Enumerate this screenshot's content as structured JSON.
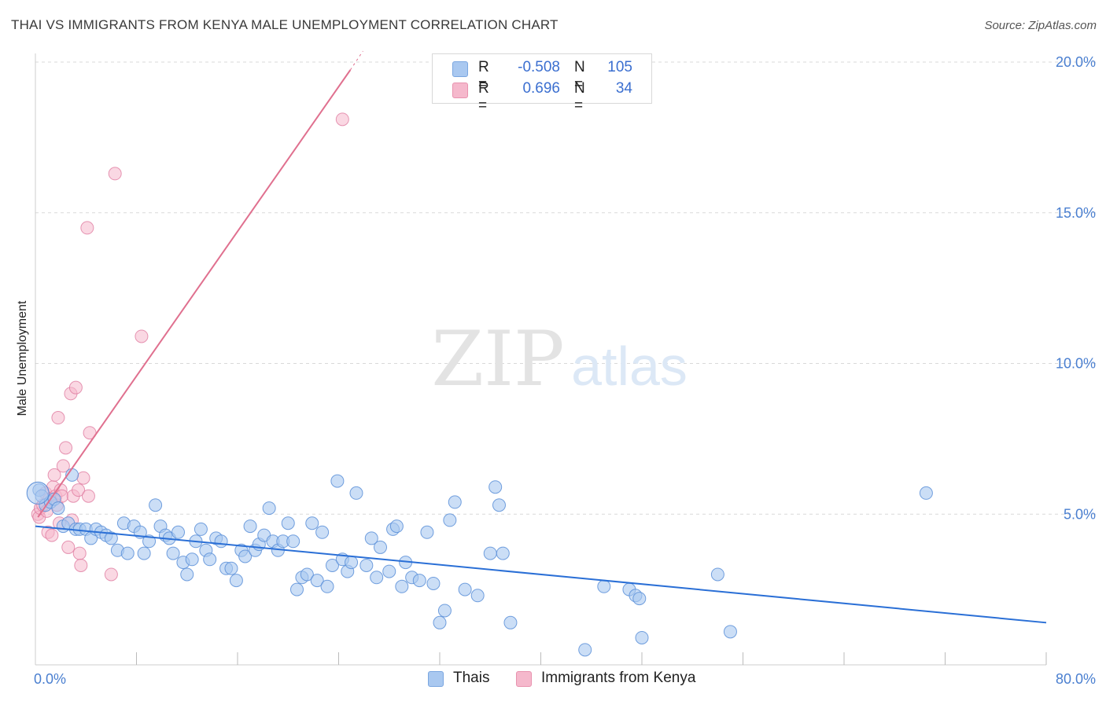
{
  "title": "THAI VS IMMIGRANTS FROM KENYA MALE UNEMPLOYMENT CORRELATION CHART",
  "source": "Source: ZipAtlas.com",
  "watermark": {
    "zip": "ZIP",
    "atlas": "atlas"
  },
  "legend": {
    "rows": [
      {
        "r_label": "R =",
        "r_value": "-0.508",
        "n_label": "N =",
        "n_value": "105",
        "color": "#a9c8f0"
      },
      {
        "r_label": "R =",
        "r_value": "0.696",
        "n_label": "N =",
        "n_value": "34",
        "color": "#f5b8cc"
      }
    ]
  },
  "bottom_legend": [
    {
      "label": "Thais",
      "color": "#a9c8f0"
    },
    {
      "label": "Immigrants from Kenya",
      "color": "#f5b8cc"
    }
  ],
  "colors": {
    "thais_fill": "#a9c8f0",
    "thais_stroke": "#5b8fd8",
    "thais_line": "#2a6fd6",
    "kenya_fill": "#f5b8cc",
    "kenya_stroke": "#e07ca0",
    "kenya_line": "#e0708f",
    "tick_text": "#4a7fd0",
    "grid": "#d9d9d9"
  },
  "chart_data": {
    "type": "scatter",
    "title": "THAI VS IMMIGRANTS FROM KENYA MALE UNEMPLOYMENT CORRELATION CHART",
    "xlabel": "",
    "ylabel": "Male Unemployment",
    "xlim": [
      0,
      80
    ],
    "ylim": [
      0,
      20
    ],
    "x_tick_labels": [
      "0.0%",
      "80.0%"
    ],
    "y_tick_labels": [
      "5.0%",
      "10.0%",
      "15.0%",
      "20.0%"
    ],
    "y_ticks": [
      5,
      10,
      15,
      20
    ],
    "grid": true,
    "legend_placement": "top-center",
    "series": [
      {
        "name": "Thais",
        "R": -0.508,
        "N": 105,
        "trend": {
          "x": [
            0,
            80
          ],
          "y": [
            4.6,
            1.4
          ]
        },
        "points": [
          [
            0.3,
            5.8
          ],
          [
            0.5,
            5.6
          ],
          [
            0.8,
            5.3
          ],
          [
            1.2,
            5.4
          ],
          [
            1.5,
            5.5
          ],
          [
            1.8,
            5.2
          ],
          [
            2.2,
            4.6
          ],
          [
            2.6,
            4.7
          ],
          [
            2.9,
            6.3
          ],
          [
            3.2,
            4.5
          ],
          [
            3.5,
            4.5
          ],
          [
            4.0,
            4.5
          ],
          [
            4.4,
            4.2
          ],
          [
            4.8,
            4.5
          ],
          [
            5.2,
            4.4
          ],
          [
            5.6,
            4.3
          ],
          [
            6.0,
            4.2
          ],
          [
            6.5,
            3.8
          ],
          [
            7.0,
            4.7
          ],
          [
            7.3,
            3.7
          ],
          [
            7.8,
            4.6
          ],
          [
            8.3,
            4.4
          ],
          [
            8.6,
            3.7
          ],
          [
            9.0,
            4.1
          ],
          [
            9.5,
            5.3
          ],
          [
            9.9,
            4.6
          ],
          [
            10.3,
            4.3
          ],
          [
            10.6,
            4.2
          ],
          [
            10.9,
            3.7
          ],
          [
            11.3,
            4.4
          ],
          [
            11.7,
            3.4
          ],
          [
            12.0,
            3.0
          ],
          [
            12.4,
            3.5
          ],
          [
            12.7,
            4.1
          ],
          [
            13.1,
            4.5
          ],
          [
            13.5,
            3.8
          ],
          [
            13.8,
            3.5
          ],
          [
            14.3,
            4.2
          ],
          [
            14.7,
            4.1
          ],
          [
            15.1,
            3.2
          ],
          [
            15.5,
            3.2
          ],
          [
            15.9,
            2.8
          ],
          [
            16.3,
            3.8
          ],
          [
            16.6,
            3.6
          ],
          [
            17.0,
            4.6
          ],
          [
            17.4,
            3.8
          ],
          [
            17.7,
            4.0
          ],
          [
            18.1,
            4.3
          ],
          [
            18.5,
            5.2
          ],
          [
            18.8,
            4.1
          ],
          [
            19.2,
            3.8
          ],
          [
            19.6,
            4.1
          ],
          [
            20.0,
            4.7
          ],
          [
            20.4,
            4.1
          ],
          [
            20.7,
            2.5
          ],
          [
            21.1,
            2.9
          ],
          [
            21.5,
            3.0
          ],
          [
            21.9,
            4.7
          ],
          [
            22.3,
            2.8
          ],
          [
            22.7,
            4.4
          ],
          [
            23.1,
            2.6
          ],
          [
            23.5,
            3.3
          ],
          [
            23.9,
            6.1
          ],
          [
            24.3,
            3.5
          ],
          [
            24.7,
            3.1
          ],
          [
            25.0,
            3.4
          ],
          [
            25.4,
            5.7
          ],
          [
            26.2,
            3.3
          ],
          [
            26.6,
            4.2
          ],
          [
            27.0,
            2.9
          ],
          [
            27.3,
            3.9
          ],
          [
            28.0,
            3.1
          ],
          [
            28.3,
            4.5
          ],
          [
            28.6,
            4.6
          ],
          [
            29.0,
            2.6
          ],
          [
            29.3,
            3.4
          ],
          [
            29.8,
            2.9
          ],
          [
            30.4,
            2.8
          ],
          [
            31.0,
            4.4
          ],
          [
            31.5,
            2.7
          ],
          [
            32.0,
            1.4
          ],
          [
            32.4,
            1.8
          ],
          [
            32.8,
            4.8
          ],
          [
            33.2,
            5.4
          ],
          [
            34.0,
            2.5
          ],
          [
            35.0,
            2.3
          ],
          [
            36.0,
            3.7
          ],
          [
            36.4,
            5.9
          ],
          [
            36.7,
            5.3
          ],
          [
            37.0,
            3.7
          ],
          [
            37.6,
            1.4
          ],
          [
            43.5,
            0.5
          ],
          [
            45.0,
            2.6
          ],
          [
            47.0,
            2.5
          ],
          [
            47.5,
            2.3
          ],
          [
            47.8,
            2.2
          ],
          [
            48.0,
            0.9
          ],
          [
            54.0,
            3.0
          ],
          [
            55.0,
            1.1
          ],
          [
            70.5,
            5.7
          ]
        ]
      },
      {
        "name": "Immigrants from Kenya",
        "R": 0.696,
        "N": 34,
        "trend": {
          "x": [
            0.2,
            25.3
          ],
          "y": [
            4.9,
            20.0
          ]
        },
        "points": [
          [
            0.2,
            5.0
          ],
          [
            0.3,
            4.9
          ],
          [
            0.4,
            5.2
          ],
          [
            0.6,
            5.3
          ],
          [
            0.8,
            5.7
          ],
          [
            0.9,
            5.1
          ],
          [
            1.0,
            4.4
          ],
          [
            1.1,
            5.5
          ],
          [
            1.3,
            4.3
          ],
          [
            1.4,
            5.9
          ],
          [
            1.5,
            6.3
          ],
          [
            1.6,
            5.6
          ],
          [
            1.7,
            5.3
          ],
          [
            1.8,
            8.2
          ],
          [
            1.9,
            4.7
          ],
          [
            2.0,
            5.8
          ],
          [
            2.1,
            5.6
          ],
          [
            2.2,
            6.6
          ],
          [
            2.4,
            7.2
          ],
          [
            2.6,
            3.9
          ],
          [
            2.8,
            9.0
          ],
          [
            2.9,
            4.8
          ],
          [
            3.0,
            5.6
          ],
          [
            3.2,
            9.2
          ],
          [
            3.4,
            5.8
          ],
          [
            3.5,
            3.7
          ],
          [
            3.6,
            3.3
          ],
          [
            3.8,
            6.2
          ],
          [
            4.1,
            14.5
          ],
          [
            4.2,
            5.6
          ],
          [
            4.3,
            7.7
          ],
          [
            6.0,
            3.0
          ],
          [
            6.3,
            16.3
          ],
          [
            8.4,
            10.9
          ],
          [
            24.3,
            18.1
          ]
        ]
      }
    ]
  }
}
